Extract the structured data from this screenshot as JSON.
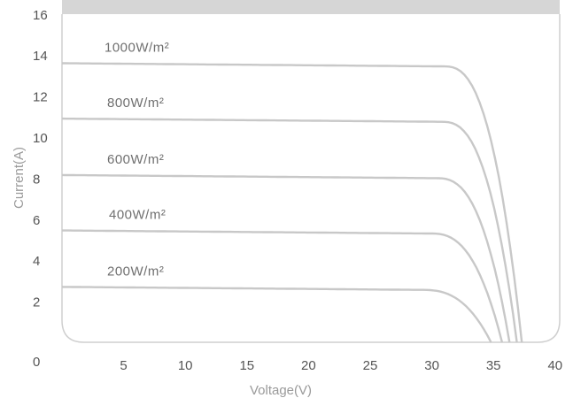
{
  "chart_data": {
    "type": "line",
    "xlabel": "Voltage(V)",
    "ylabel": "Current(A)",
    "xlim": [
      0,
      40
    ],
    "ylim": [
      0,
      16
    ],
    "xticks": [
      "0",
      "5",
      "10",
      "15",
      "20",
      "25",
      "30",
      "35",
      "40"
    ],
    "yticks": [
      "0",
      "2",
      "4",
      "6",
      "8",
      "10",
      "12",
      "14",
      "16"
    ],
    "grid": false,
    "colors": {
      "curve": "#c8c8c8",
      "frame": "#cfcfcf",
      "header_band": "#d6d6d6"
    },
    "series": [
      {
        "name": "1000W/m²",
        "isc": 13.6,
        "voc": 37.3,
        "knee": 31.0
      },
      {
        "name": "800W/m²",
        "isc": 10.9,
        "voc": 36.9,
        "knee": 30.8
      },
      {
        "name": "600W/m²",
        "isc": 8.15,
        "voc": 36.3,
        "knee": 30.4
      },
      {
        "name": "400W/m²",
        "isc": 5.45,
        "voc": 35.7,
        "knee": 29.9
      },
      {
        "name": "200W/m²",
        "isc": 2.7,
        "voc": 34.8,
        "knee": 29.2
      }
    ]
  }
}
